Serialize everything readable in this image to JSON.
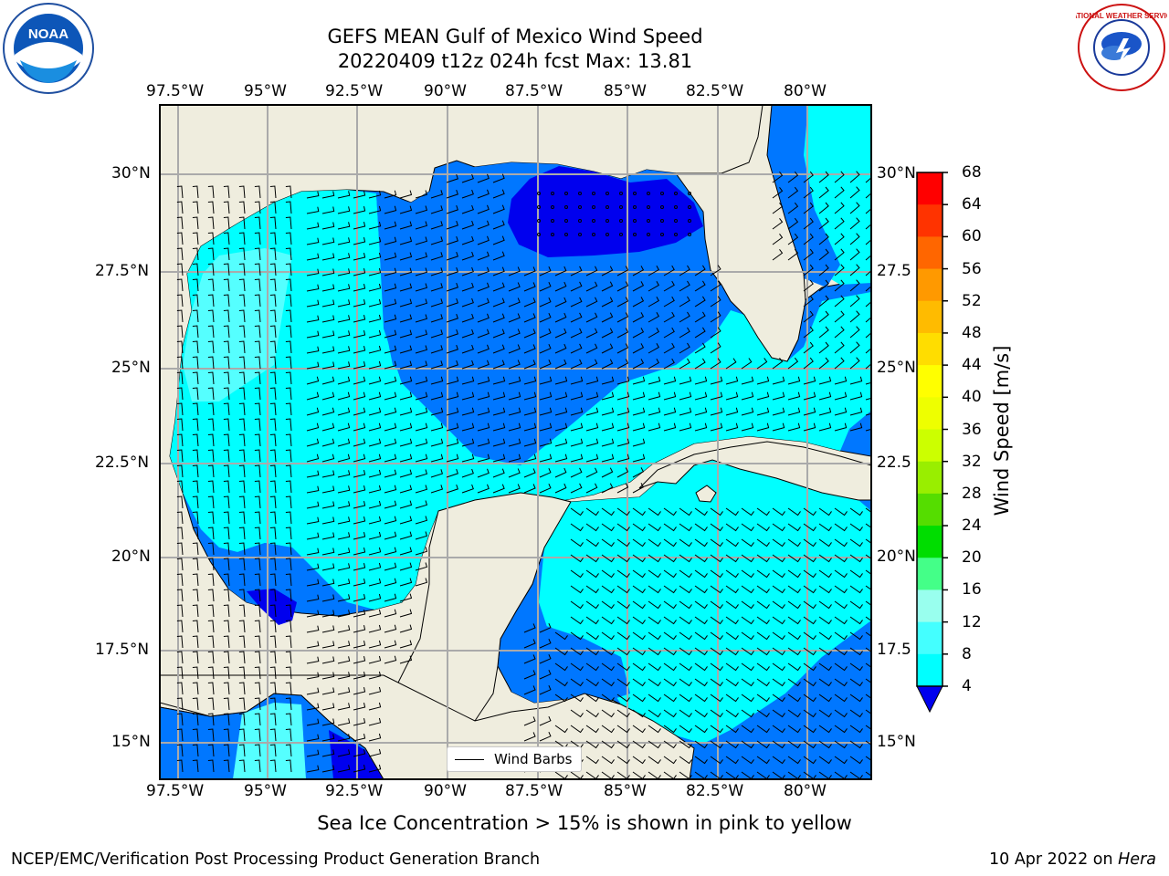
{
  "title": {
    "line1": "GEFS MEAN Gulf of Mexico Wind Speed",
    "line2": "20220409 t12z 024h fcst   Max: 13.81"
  },
  "map": {
    "lon_ticks": [
      "97.5°W",
      "95°W",
      "92.5°W",
      "90°W",
      "87.5°W",
      "85°W",
      "82.5°W",
      "80°W"
    ],
    "lat_ticks_left": [
      "30°N",
      "27.5°N",
      "25°N",
      "22.5°N",
      "20°N",
      "17.5°N",
      "15°N"
    ],
    "lat_ticks_right": [
      "30°N",
      "27.5",
      "25°N",
      "22.5",
      "20°N",
      "17.5",
      "15°N"
    ],
    "land_color": "#efedde",
    "legend_label": "Wind Barbs"
  },
  "colorbar": {
    "title": "Wind Speed [m/s]",
    "labels": [
      "68",
      "64",
      "60",
      "56",
      "52",
      "48",
      "44",
      "40",
      "36",
      "32",
      "28",
      "24",
      "20",
      "16",
      "12",
      "8",
      "4"
    ],
    "colors": [
      "#ff0000",
      "#ff3300",
      "#ff6600",
      "#ff9900",
      "#ffbb00",
      "#ffdd00",
      "#ffff00",
      "#eeff00",
      "#ccff00",
      "#99ee00",
      "#55dd00",
      "#00dd00",
      "#44ff88",
      "#99ffee",
      "#44ffff",
      "#00ffff",
      "#0077ff"
    ],
    "extend_color": "#0000ee"
  },
  "logos": {
    "noaa_text": "NOAA",
    "nws_text": "NATIONAL WEATHER SERVICE"
  },
  "note": "Sea Ice Concentration > 15% is shown in pink to yellow",
  "footer": {
    "left": "NCEP/EMC/Verification Post Processing Product Generation Branch",
    "right_date": "10 Apr 2022 on ",
    "right_host": "Hera"
  }
}
